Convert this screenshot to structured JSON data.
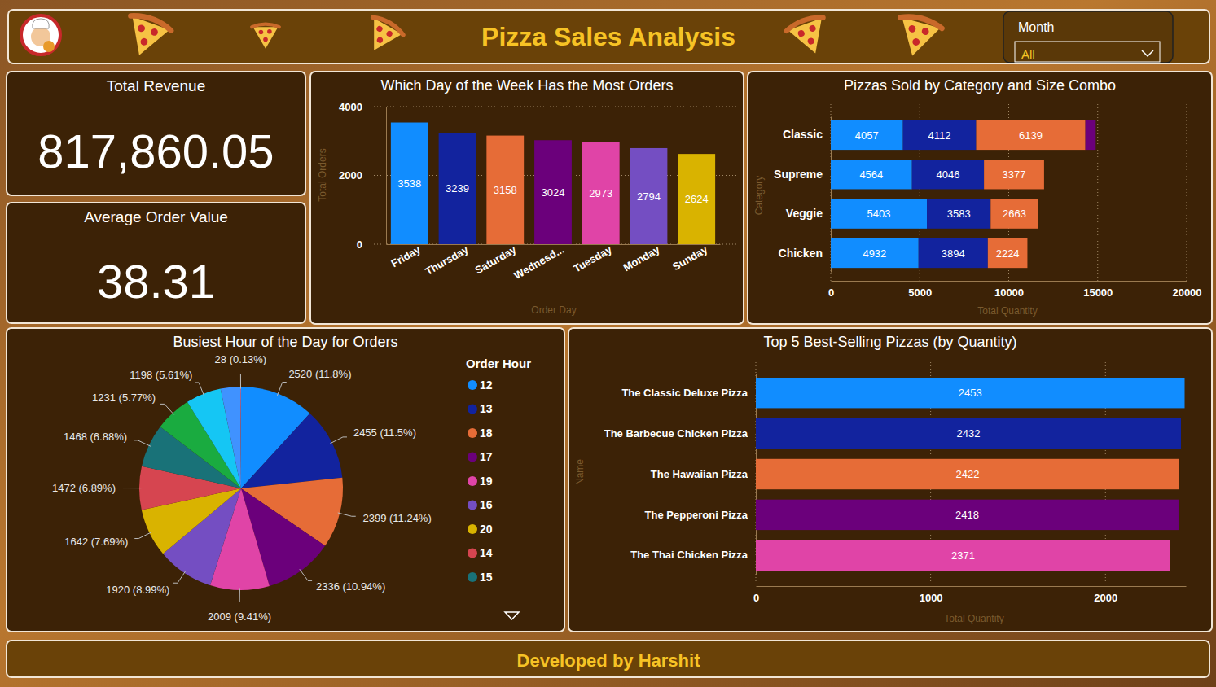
{
  "header": {
    "title": "Pizza Sales Analysis",
    "filter": {
      "label": "Month",
      "value": "All"
    }
  },
  "kpis": [
    {
      "title": "Total Revenue",
      "value": "817,860.05"
    },
    {
      "title": "Average Order Value",
      "value": "38.31"
    }
  ],
  "footer": "Developed by Harshit",
  "chart_data": [
    {
      "type": "bar",
      "title": "Which Day of the Week Has the Most Orders",
      "x_label": "Order Day",
      "y_label": "Total Orders",
      "categories": [
        "Friday",
        "Thursday",
        "Saturday",
        "Wednesd...",
        "Tuesday",
        "Monday",
        "Sunday"
      ],
      "values": [
        3538,
        3239,
        3158,
        3024,
        2973,
        2794,
        2624
      ],
      "colors": [
        "#118dff",
        "#12239e",
        "#e66c37",
        "#6b007b",
        "#e044a7",
        "#744ec2",
        "#d9b300"
      ],
      "ylim": [
        0,
        4000
      ],
      "yticks": [
        0,
        2000,
        4000
      ],
      "grid": true,
      "data_labels": true
    },
    {
      "type": "bar",
      "title": "Pizzas Sold by Category and Size Combo",
      "orientation": "horizontal",
      "stacked": true,
      "x_label": "Total Quantity",
      "y_label": "Category",
      "categories": [
        "Classic",
        "Supreme",
        "Veggie",
        "Chicken"
      ],
      "series": [
        {
          "color": "#118dff",
          "values": [
            4057,
            4564,
            5403,
            4932
          ]
        },
        {
          "color": "#12239e",
          "values": [
            4112,
            4046,
            3583,
            3894
          ]
        },
        {
          "color": "#e66c37",
          "values": [
            6139,
            3377,
            2663,
            2224
          ]
        },
        {
          "color": "#6b007b",
          "values": [
            580,
            null,
            null,
            null
          ]
        }
      ],
      "xlim": [
        0,
        20000
      ],
      "xticks": [
        0,
        5000,
        10000,
        15000,
        20000
      ],
      "grid": true,
      "data_labels": true
    },
    {
      "type": "pie",
      "title": "Busiest Hour of the Day for Orders",
      "legend_title": "Order Hour",
      "legend": "right",
      "categories": [
        "12",
        "13",
        "18",
        "17",
        "19",
        "16",
        "20",
        "14",
        "15",
        null,
        null,
        null,
        null
      ],
      "values": [
        2520,
        2455,
        2399,
        2336,
        2009,
        1920,
        1642,
        1472,
        1468,
        1231,
        1198,
        663,
        28
      ],
      "value_labels": [
        "2520 (11.8%)",
        "2455 (11.5%)",
        "2399 (11.24%)",
        "2336 (10.94%)",
        "2009 (9.41%)",
        "1920 (8.99%)",
        "1642 (7.69%)",
        "1472 (6.89%)",
        "1468 (6.88%)",
        "1231 (5.77%)",
        "1198 (5.61%)",
        null,
        "28 (0.13%)"
      ],
      "colors": [
        "#118dff",
        "#12239e",
        "#e66c37",
        "#6b007b",
        "#e044a7",
        "#744ec2",
        "#d9b300",
        "#d64550",
        "#197278",
        "#1aab40",
        "#15c6f4",
        "#4092ff",
        "#a66999"
      ],
      "data_labels": true
    },
    {
      "type": "bar",
      "title": "Top 5 Best-Selling Pizzas (by Quantity)",
      "orientation": "horizontal",
      "x_label": "Total Quantity",
      "y_label": "Name",
      "categories": [
        "The Classic Deluxe Pizza",
        "The Barbecue Chicken Pizza",
        "The Hawaiian Pizza",
        "The Pepperoni Pizza",
        "The Thai Chicken Pizza"
      ],
      "values": [
        2453,
        2432,
        2422,
        2418,
        2371
      ],
      "colors": [
        "#118dff",
        "#12239e",
        "#e66c37",
        "#6b007b",
        "#e044a7"
      ],
      "xlim": [
        0,
        2460
      ],
      "xticks": [
        0,
        1000,
        2000
      ],
      "grid": true,
      "data_labels": true
    }
  ]
}
